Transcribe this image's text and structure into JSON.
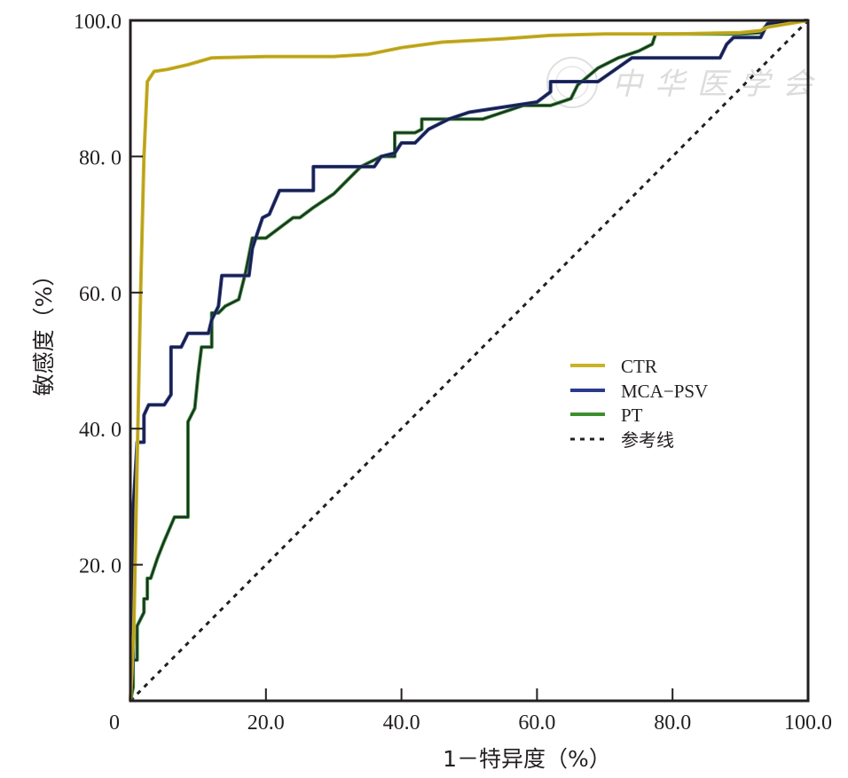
{
  "chart_data": {
    "type": "line",
    "title": "",
    "xlabel": "1－特异度（%）",
    "ylabel": "敏感度（%）",
    "xlim": [
      0,
      100
    ],
    "ylim": [
      0,
      100
    ],
    "x_ticks": [
      0,
      20,
      40,
      60,
      80,
      100
    ],
    "y_ticks": [
      0,
      20,
      40,
      60,
      80,
      100
    ],
    "x_tick_labels": [
      "0",
      "20.0",
      "40.0",
      "60.0",
      "80.0",
      "100.0"
    ],
    "y_tick_labels": [
      "0",
      "20. 0",
      "40. 0",
      "60. 0",
      "80. 0",
      "100.0"
    ],
    "grid": false,
    "legend_position": "center-right",
    "watermark": "中华医学会",
    "series": [
      {
        "name": "CTR",
        "color": "#c9b227",
        "style": "solid",
        "points": [
          [
            0,
            0
          ],
          [
            0.5,
            10
          ],
          [
            1,
            35
          ],
          [
            1.5,
            60
          ],
          [
            2,
            80
          ],
          [
            2.5,
            91
          ],
          [
            3.5,
            92.5
          ],
          [
            5.5,
            92.8
          ],
          [
            8.5,
            93.5
          ],
          [
            12,
            94.5
          ],
          [
            20,
            94.7
          ],
          [
            30,
            94.7
          ],
          [
            35,
            95
          ],
          [
            40,
            96
          ],
          [
            46,
            96.8
          ],
          [
            55,
            97.3
          ],
          [
            62,
            97.8
          ],
          [
            70,
            98
          ],
          [
            80,
            98
          ],
          [
            90,
            98.2
          ],
          [
            93,
            98.5
          ],
          [
            94,
            99
          ],
          [
            100,
            100
          ]
        ]
      },
      {
        "name": "MCA-PSV",
        "color": "#2b3a8c",
        "style": "solid",
        "points": [
          [
            0,
            0
          ],
          [
            0.4,
            6
          ],
          [
            0.4,
            28
          ],
          [
            1,
            38
          ],
          [
            2,
            38
          ],
          [
            2,
            42
          ],
          [
            2.7,
            43.5
          ],
          [
            5,
            43.5
          ],
          [
            6,
            45
          ],
          [
            6,
            52
          ],
          [
            7.5,
            52
          ],
          [
            8.5,
            54
          ],
          [
            11.5,
            54
          ],
          [
            12,
            56
          ],
          [
            13,
            58
          ],
          [
            13.5,
            62.5
          ],
          [
            17.5,
            62.5
          ],
          [
            18,
            66.5
          ],
          [
            18.5,
            68
          ],
          [
            19.5,
            71
          ],
          [
            20.5,
            71.5
          ],
          [
            22,
            75
          ],
          [
            27,
            75
          ],
          [
            27,
            78.5
          ],
          [
            36,
            78.5
          ],
          [
            37,
            80
          ],
          [
            39,
            80.5
          ],
          [
            40,
            82
          ],
          [
            41,
            82
          ],
          [
            42,
            82
          ],
          [
            44,
            84
          ],
          [
            47,
            85.5
          ],
          [
            50,
            86.5
          ],
          [
            60,
            88
          ],
          [
            62,
            89.5
          ],
          [
            62,
            91
          ],
          [
            69,
            91
          ],
          [
            74,
            94.5
          ],
          [
            80,
            94.5
          ],
          [
            80,
            94.5
          ],
          [
            87,
            94.5
          ],
          [
            88,
            96.5
          ],
          [
            89,
            97.5
          ],
          [
            93,
            97.5
          ],
          [
            94,
            99.5
          ],
          [
            100,
            100
          ]
        ]
      },
      {
        "name": "PT",
        "color": "#3d8f2e",
        "style": "solid",
        "points": [
          [
            0,
            0
          ],
          [
            0.4,
            2
          ],
          [
            0.4,
            6
          ],
          [
            1,
            6
          ],
          [
            1,
            11
          ],
          [
            2,
            13
          ],
          [
            2,
            15
          ],
          [
            2.5,
            15
          ],
          [
            2.5,
            18
          ],
          [
            3,
            18
          ],
          [
            4,
            21
          ],
          [
            5,
            23.5
          ],
          [
            6.5,
            27
          ],
          [
            8,
            27
          ],
          [
            8.5,
            27
          ],
          [
            8.5,
            41
          ],
          [
            9.5,
            43
          ],
          [
            10,
            48
          ],
          [
            10.5,
            52
          ],
          [
            12,
            52
          ],
          [
            12,
            57
          ],
          [
            13,
            57
          ],
          [
            14,
            58
          ],
          [
            16,
            59
          ],
          [
            17,
            63
          ],
          [
            18,
            68
          ],
          [
            20,
            68
          ],
          [
            22,
            69.5
          ],
          [
            24,
            71
          ],
          [
            25,
            71
          ],
          [
            27,
            72.5
          ],
          [
            30,
            74.5
          ],
          [
            32,
            76.5
          ],
          [
            34,
            78.5
          ],
          [
            37,
            80
          ],
          [
            39,
            80
          ],
          [
            39,
            81.5
          ],
          [
            39,
            83.5
          ],
          [
            42,
            83.5
          ],
          [
            43,
            84
          ],
          [
            43,
            85.5
          ],
          [
            45,
            85.5
          ],
          [
            52,
            85.5
          ],
          [
            55,
            86.5
          ],
          [
            58,
            87.5
          ],
          [
            62,
            87.5
          ],
          [
            65,
            88.5
          ],
          [
            66,
            90.5
          ],
          [
            69,
            93
          ],
          [
            72,
            94.5
          ],
          [
            75,
            95.5
          ],
          [
            77,
            96.5
          ],
          [
            77.5,
            98
          ],
          [
            90,
            98
          ],
          [
            93,
            98.2
          ],
          [
            94,
            99.5
          ],
          [
            100,
            100
          ]
        ]
      },
      {
        "name": "参考线",
        "color": "#231f20",
        "style": "dotted",
        "points": [
          [
            0,
            0
          ],
          [
            100,
            100
          ]
        ]
      }
    ]
  },
  "legend": {
    "items": [
      {
        "label": "CTR",
        "color": "#c9b227",
        "style": "solid"
      },
      {
        "label": "MCA−PSV",
        "color": "#2b3a8c",
        "style": "solid"
      },
      {
        "label": "PT",
        "color": "#3d8f2e",
        "style": "solid"
      },
      {
        "label": "参考线",
        "color": "#231f20",
        "style": "dotted"
      }
    ]
  }
}
